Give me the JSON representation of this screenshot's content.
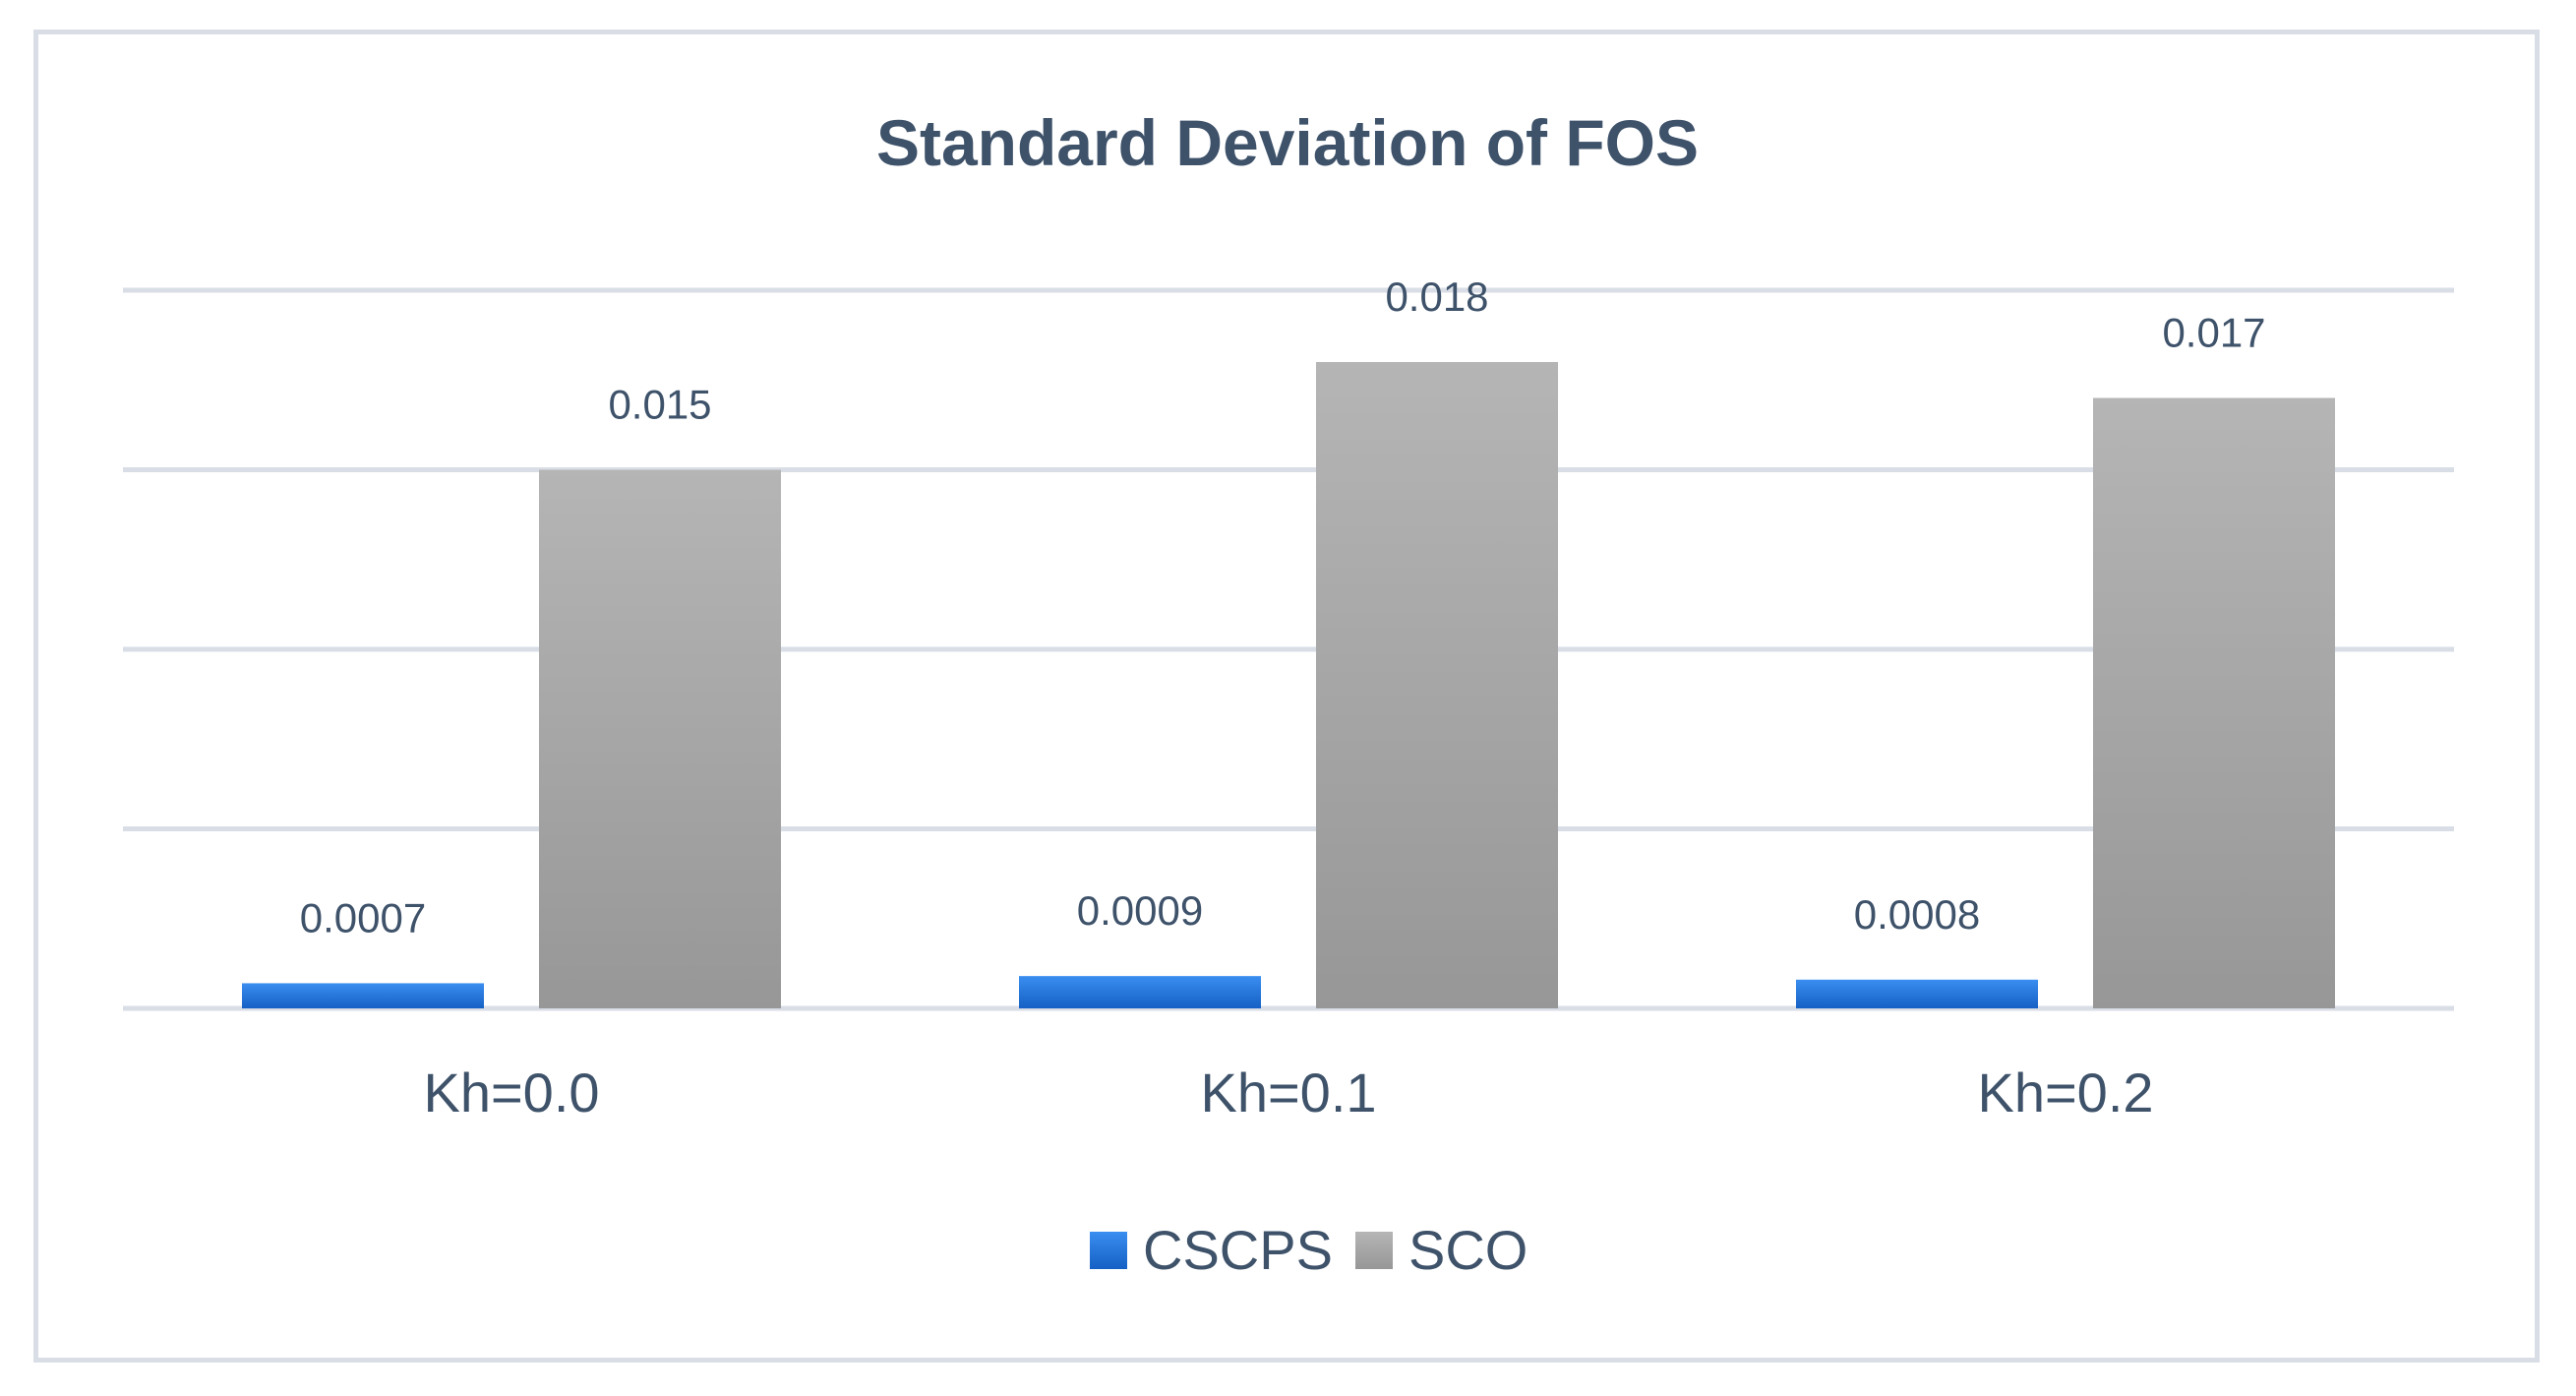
{
  "chart_data": {
    "type": "bar",
    "title": "Standard Deviation of FOS",
    "categories": [
      "Kh=0.0",
      "Kh=0.1",
      "Kh=0.2"
    ],
    "series": [
      {
        "name": "CSCPS",
        "values": [
          0.0007,
          0.0009,
          0.0008
        ],
        "labels": [
          "0.0007",
          "0.0009",
          "0.0008"
        ],
        "color": "#1f6fd6"
      },
      {
        "name": "SCO",
        "values": [
          0.015,
          0.018,
          0.017
        ],
        "labels": [
          "0.015",
          "0.018",
          "0.017"
        ],
        "color": "#a6a6a6"
      }
    ],
    "ylim": [
      0,
      0.02
    ],
    "grid": true,
    "legend": "bottom"
  }
}
